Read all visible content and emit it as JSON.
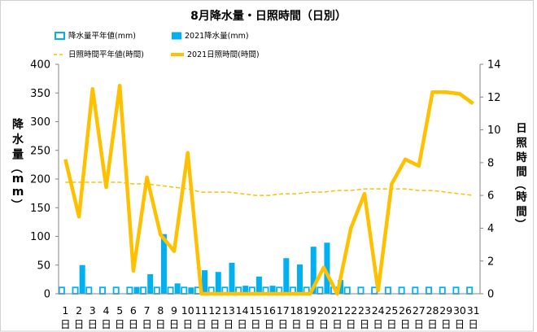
{
  "chart_data": {
    "type": "bar",
    "title": "8月降水量・日照時間（日別）",
    "categories": [
      "1日",
      "2日",
      "3日",
      "4日",
      "5日",
      "6日",
      "7日",
      "8日",
      "9日",
      "10日",
      "11日",
      "12日",
      "13日",
      "14日",
      "15日",
      "16日",
      "17日",
      "18日",
      "19日",
      "20日",
      "21日",
      "22日",
      "23日",
      "24日",
      "25日",
      "26日",
      "27日",
      "28日",
      "29日",
      "30日",
      "31日"
    ],
    "ylabel": "降水量（mm）",
    "ylim": [
      0,
      400
    ],
    "yticks": [
      0,
      50,
      100,
      150,
      200,
      250,
      300,
      350,
      400
    ],
    "y2label": "日照時間（時間）",
    "y2lim": [
      0,
      14
    ],
    "y2ticks": [
      0,
      2,
      4,
      6,
      8,
      10,
      12,
      14
    ],
    "legend": "top-left",
    "grid": false,
    "series": [
      {
        "name": "降水量平年値(mm)",
        "type": "bar",
        "outline": true,
        "secondary_axis": false,
        "color": "#00B0F0",
        "values": [
          11,
          11,
          11,
          11,
          11,
          11,
          11,
          11,
          11,
          11,
          11,
          11,
          11,
          11,
          11,
          11,
          11,
          11,
          11,
          11,
          11,
          11,
          11,
          11,
          11,
          11,
          11,
          11,
          11,
          11,
          11
        ]
      },
      {
        "name": "2021降水量(mm)",
        "type": "bar",
        "outline": false,
        "secondary_axis": false,
        "color": "#00B0F0",
        "values": [
          0,
          50,
          0,
          0,
          0,
          12,
          34,
          104,
          18,
          11,
          41,
          38,
          54,
          14,
          30,
          14,
          62,
          51,
          82,
          89,
          24,
          0,
          0,
          0,
          0,
          0,
          0,
          0,
          0,
          0,
          0
        ]
      },
      {
        "name": "日照時間平年値(時間)",
        "type": "line",
        "dashed": true,
        "secondary_axis": true,
        "color": "#FFC000",
        "values": [
          6.8,
          6.8,
          6.8,
          6.8,
          6.8,
          6.7,
          6.7,
          6.6,
          6.5,
          6.4,
          6.2,
          6.2,
          6.2,
          6.1,
          6.0,
          6.0,
          6.1,
          6.1,
          6.2,
          6.2,
          6.3,
          6.3,
          6.4,
          6.4,
          6.4,
          6.4,
          6.3,
          6.3,
          6.2,
          6.1,
          6.0
        ]
      },
      {
        "name": "2021日照時間(時間)",
        "type": "line",
        "dashed": false,
        "secondary_axis": true,
        "color": "#FFC000",
        "values": [
          8.2,
          4.7,
          12.5,
          6.5,
          12.7,
          1.4,
          7.1,
          3.6,
          2.6,
          8.6,
          0,
          0,
          0,
          0,
          0,
          0,
          0,
          0,
          0,
          1.6,
          0,
          4.0,
          6.1,
          0.2,
          6.7,
          8.2,
          7.8,
          12.3,
          12.3,
          12.2,
          11.6
        ]
      }
    ]
  }
}
